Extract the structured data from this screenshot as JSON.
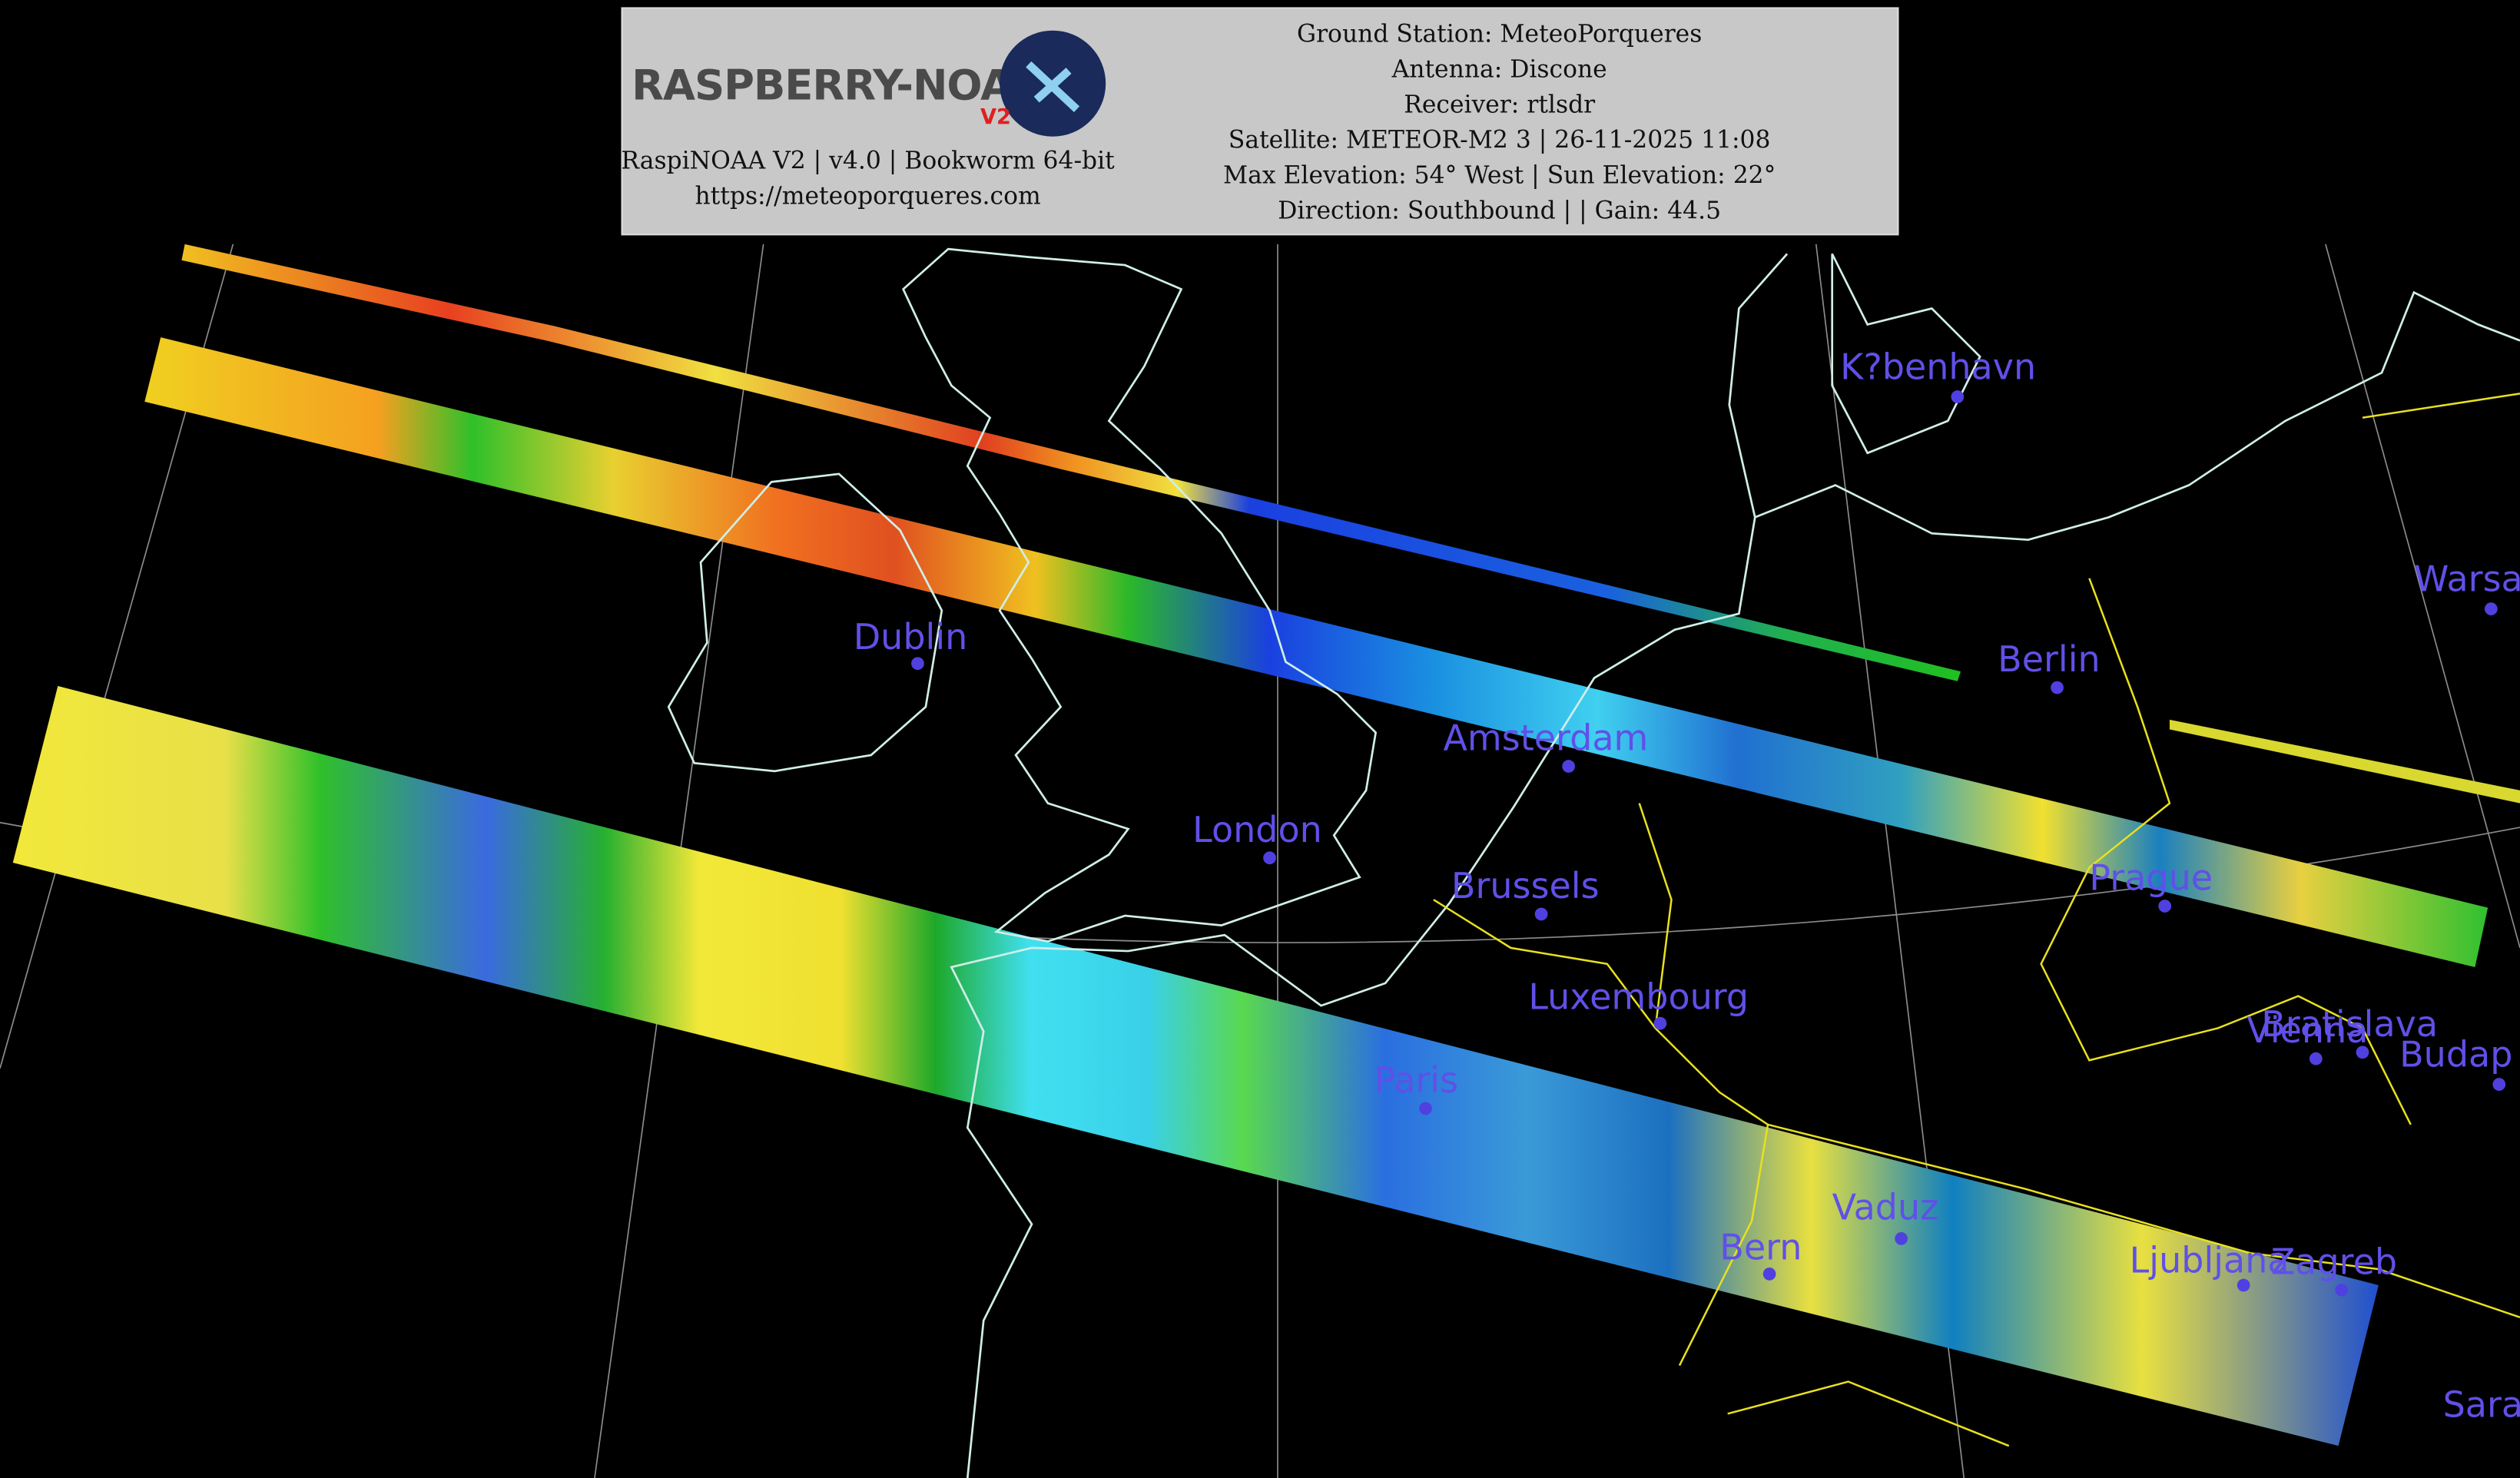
{
  "header": {
    "logo": {
      "title": "RASPBERRY-NOAA",
      "badge": "V2"
    },
    "left_lines": [
      "RaspiNOAA V2 | v4.0 | Bookworm 64-bit",
      "https://meteoporqueres.com"
    ],
    "right_lines": [
      "Ground Station: MeteoPorqueres",
      "Antenna: Discone",
      "Receiver: rtlsdr",
      "Satellite: METEOR-M2 3 | 26-11-2025 11:08",
      "Max Elevation: 54° West | Sun Elevation: 22°",
      "Direction: Southbound | | Gain: 44.5"
    ]
  },
  "map": {
    "cities": [
      "K?benhavn",
      "Warsa",
      "Dublin",
      "Berlin",
      "Amsterdam",
      "London",
      "Brussels",
      "Prague",
      "Luxembourg",
      "Bratislava",
      "Vienna",
      "Budap",
      "Paris",
      "Vaduz",
      "Bern",
      "Ljubljana",
      "Zagreb",
      "Sara"
    ]
  }
}
